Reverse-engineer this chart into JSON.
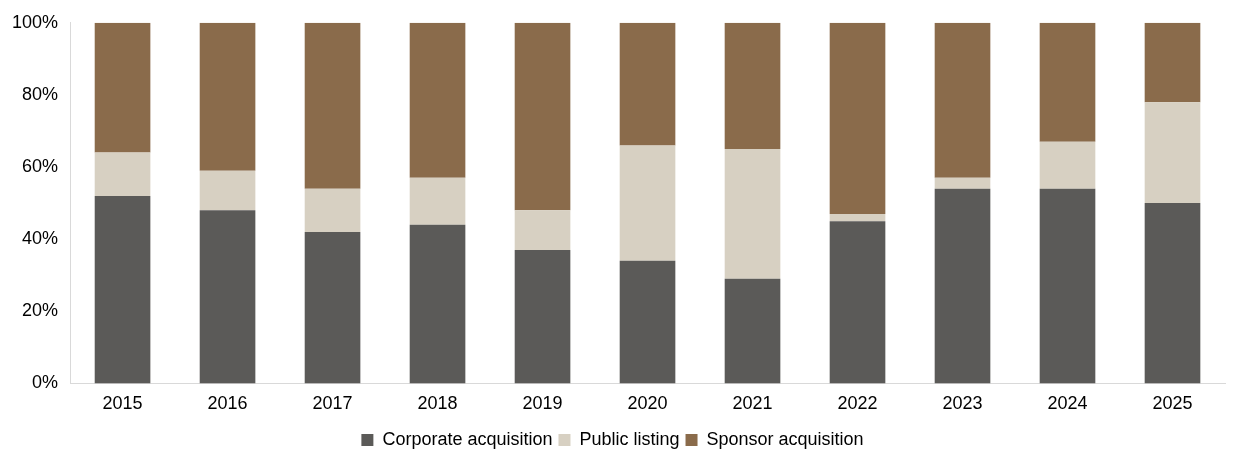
{
  "chart_data": {
    "type": "bar",
    "stacked": true,
    "categories": [
      "2015",
      "2016",
      "2017",
      "2018",
      "2019",
      "2020",
      "2021",
      "2022",
      "2023",
      "2024",
      "2025"
    ],
    "series": [
      {
        "name": "Corporate acquisition",
        "color": "#5b5a58",
        "values": [
          52,
          48,
          42,
          44,
          37,
          34,
          29,
          45,
          54,
          54,
          50
        ]
      },
      {
        "name": "Public listing",
        "color": "#d7d0c2",
        "values": [
          12,
          11,
          12,
          13,
          11,
          32,
          36,
          2,
          3,
          13,
          28
        ]
      },
      {
        "name": "Sponsor acquisition",
        "color": "#8a6b4b",
        "values": [
          36,
          41,
          46,
          43,
          52,
          34,
          35,
          53,
          43,
          33,
          22
        ]
      }
    ],
    "ylim": [
      0,
      100
    ],
    "yticks": [
      {
        "value": 0,
        "label": "0%"
      },
      {
        "value": 20,
        "label": "20%"
      },
      {
        "value": 40,
        "label": "40%"
      },
      {
        "value": 60,
        "label": "60%"
      },
      {
        "value": 80,
        "label": "80%"
      },
      {
        "value": 100,
        "label": "100%"
      }
    ],
    "grid": false,
    "legend": "bottom"
  }
}
